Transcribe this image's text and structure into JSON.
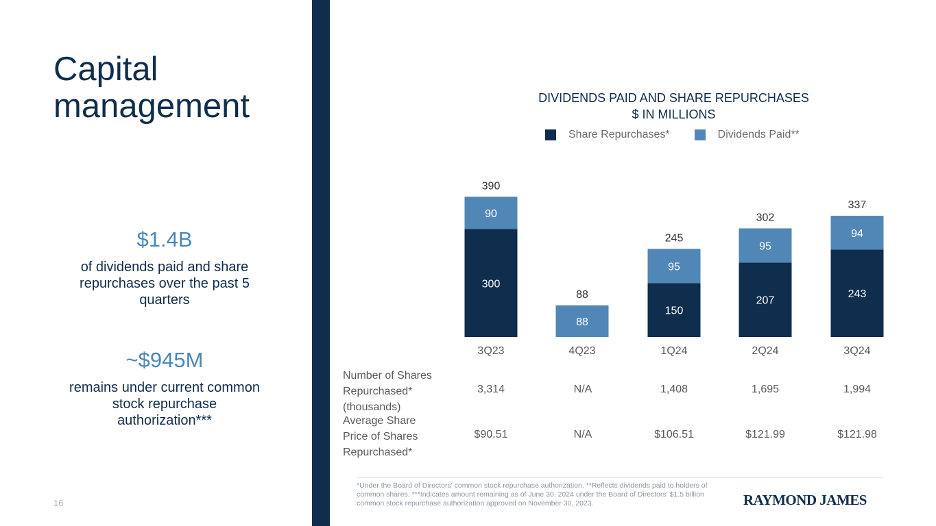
{
  "page": {
    "title": "Capital management",
    "page_number": "16"
  },
  "stats": [
    {
      "value": "$1.4B",
      "text": "of dividends paid and share repurchases over the past 5 quarters"
    },
    {
      "value": "~$945M",
      "text": "remains under current common stock repurchase authorization***"
    }
  ],
  "chart_data": {
    "type": "bar",
    "stacked": true,
    "title": "DIVIDENDS PAID AND SHARE REPURCHASES",
    "subtitle": "$ IN MILLIONS",
    "categories": [
      "3Q23",
      "4Q23",
      "1Q24",
      "2Q24",
      "3Q24"
    ],
    "series": [
      {
        "name": "Share Repurchases*",
        "color": "#0f2d4d",
        "values": [
          300,
          0,
          150,
          207,
          243
        ],
        "labels": [
          "300",
          "",
          "150",
          "207",
          "243"
        ]
      },
      {
        "name": "Dividends Paid**",
        "color": "#5087b6",
        "values": [
          90,
          88,
          95,
          95,
          94
        ],
        "labels": [
          "90",
          "88",
          "95",
          "95",
          "94"
        ]
      }
    ],
    "totals": [
      "390",
      "88",
      "245",
      "302",
      "337"
    ],
    "legend_position": "top"
  },
  "table": {
    "rows": [
      {
        "header": [
          "Number of Shares",
          "Repurchased*",
          "(thousands)"
        ],
        "values": [
          "3,314",
          "N/A",
          "1,408",
          "1,695",
          "1,994"
        ]
      },
      {
        "header": [
          "Average Share",
          "Price of Shares",
          "Repurchased*"
        ],
        "values": [
          "$90.51",
          "N/A",
          "$106.51",
          "$121.99",
          "$121.98"
        ]
      }
    ]
  },
  "footnote": "*Under the Board of Directors' common stock repurchase authorization. **Reflects dividends paid to holders of common shares. ***Indicates amount remaining as of June 30, 2024 under the Board of Directors' $1.5 billion common stock repurchase authorization approved on November 30, 2023.",
  "logo": {
    "text": "RAYMOND JAMES"
  }
}
